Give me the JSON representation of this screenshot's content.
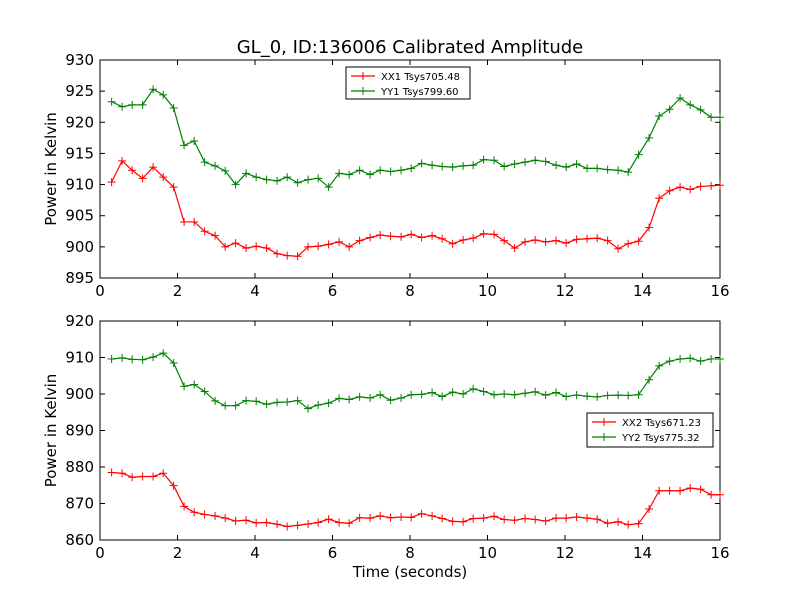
{
  "title": "GL_0, ID:136006 Calibrated Amplitude",
  "colors": {
    "red": "#ff0000",
    "green": "#008000"
  },
  "chart_data": [
    {
      "type": "line",
      "xlabel": "",
      "ylabel": "Power in Kelvin",
      "xlim": [
        0,
        16
      ],
      "ylim": [
        895,
        930
      ],
      "xticks": [
        0,
        2,
        4,
        6,
        8,
        10,
        12,
        14,
        16
      ],
      "yticks": [
        895,
        900,
        905,
        910,
        915,
        920,
        925,
        930
      ],
      "grid": false,
      "legend_position": "top-center",
      "x": [
        0.3,
        0.57,
        0.83,
        1.1,
        1.37,
        1.63,
        1.9,
        2.17,
        2.43,
        2.7,
        2.97,
        3.23,
        3.5,
        3.77,
        4.03,
        4.3,
        4.57,
        4.83,
        5.1,
        5.37,
        5.63,
        5.9,
        6.17,
        6.43,
        6.7,
        6.97,
        7.23,
        7.5,
        7.77,
        8.03,
        8.3,
        8.57,
        8.83,
        9.1,
        9.37,
        9.63,
        9.9,
        10.17,
        10.43,
        10.7,
        10.97,
        11.23,
        11.5,
        11.77,
        12.03,
        12.3,
        12.57,
        12.83,
        13.1,
        13.37,
        13.63,
        13.9,
        14.17,
        14.43,
        14.7,
        14.97,
        15.23,
        15.5,
        15.77,
        16.0
      ],
      "series": [
        {
          "name": "XX1 Tsys705.48",
          "color": "#ff0000",
          "values": [
            910.4,
            913.8,
            912.3,
            911.0,
            912.8,
            911.2,
            909.6,
            904.0,
            904.0,
            902.5,
            901.8,
            900.0,
            900.6,
            899.8,
            900.1,
            899.8,
            898.9,
            898.6,
            898.5,
            900.0,
            900.1,
            900.4,
            900.8,
            900.0,
            901.0,
            901.5,
            901.9,
            901.7,
            901.6,
            902.0,
            901.5,
            901.8,
            901.3,
            900.5,
            901.1,
            901.4,
            902.1,
            902.0,
            901.0,
            899.8,
            900.8,
            901.1,
            900.8,
            901.0,
            900.6,
            901.2,
            901.3,
            901.4,
            901.0,
            899.7,
            900.5,
            900.9,
            903.1,
            907.8,
            909.0,
            909.6,
            909.2,
            909.7,
            909.8,
            909.9
          ]
        },
        {
          "name": "YY1 Tsys799.60",
          "color": "#008000",
          "values": [
            923.3,
            922.5,
            922.8,
            922.8,
            925.3,
            924.4,
            922.3,
            916.3,
            917.0,
            913.6,
            913.0,
            912.2,
            910.0,
            911.8,
            911.2,
            910.8,
            910.6,
            911.2,
            910.3,
            910.8,
            911.0,
            909.6,
            911.8,
            911.6,
            912.3,
            911.6,
            912.3,
            912.1,
            912.3,
            912.6,
            913.4,
            913.1,
            912.9,
            912.8,
            913.0,
            913.1,
            914.0,
            913.9,
            912.9,
            913.3,
            913.6,
            913.9,
            913.7,
            913.1,
            912.8,
            913.3,
            912.6,
            912.6,
            912.4,
            912.3,
            912.0,
            914.8,
            917.5,
            921.0,
            922.1,
            923.9,
            922.8,
            922.0,
            920.8,
            920.8
          ]
        }
      ]
    },
    {
      "type": "line",
      "xlabel": "Time (seconds)",
      "ylabel": "Power in Kelvin",
      "xlim": [
        0,
        16
      ],
      "ylim": [
        860,
        920
      ],
      "xticks": [
        0,
        2,
        4,
        6,
        8,
        10,
        12,
        14,
        16
      ],
      "yticks": [
        860,
        870,
        880,
        890,
        900,
        910,
        920
      ],
      "grid": false,
      "legend_position": "center-right",
      "x": [
        0.3,
        0.57,
        0.83,
        1.1,
        1.37,
        1.63,
        1.9,
        2.17,
        2.43,
        2.7,
        2.97,
        3.23,
        3.5,
        3.77,
        4.03,
        4.3,
        4.57,
        4.83,
        5.1,
        5.37,
        5.63,
        5.9,
        6.17,
        6.43,
        6.7,
        6.97,
        7.23,
        7.5,
        7.77,
        8.03,
        8.3,
        8.57,
        8.83,
        9.1,
        9.37,
        9.63,
        9.9,
        10.17,
        10.43,
        10.7,
        10.97,
        11.23,
        11.5,
        11.77,
        12.03,
        12.3,
        12.57,
        12.83,
        13.1,
        13.37,
        13.63,
        13.9,
        14.17,
        14.43,
        14.7,
        14.97,
        15.23,
        15.5,
        15.77,
        16.0
      ],
      "series": [
        {
          "name": "XX2 Tsys671.23",
          "color": "#ff0000",
          "values": [
            878.5,
            878.3,
            877.2,
            877.4,
            877.4,
            878.3,
            874.9,
            869.2,
            867.6,
            867.0,
            866.6,
            866.0,
            865.2,
            865.4,
            864.7,
            864.8,
            864.3,
            863.7,
            864.0,
            864.4,
            864.8,
            865.7,
            864.8,
            864.6,
            866.1,
            866.0,
            866.6,
            866.1,
            866.3,
            866.2,
            867.2,
            866.6,
            865.9,
            865.1,
            865.0,
            865.9,
            866.0,
            866.5,
            865.6,
            865.4,
            865.9,
            865.6,
            865.2,
            866.0,
            866.0,
            866.3,
            866.0,
            865.7,
            864.6,
            865.0,
            864.2,
            864.5,
            868.5,
            873.5,
            873.5,
            873.5,
            874.2,
            873.9,
            872.4,
            872.4
          ]
        },
        {
          "name": "YY2 Tsys775.32",
          "color": "#008000",
          "values": [
            909.6,
            909.9,
            909.5,
            909.4,
            910.1,
            911.2,
            908.5,
            902.1,
            902.6,
            900.7,
            898.1,
            896.8,
            896.8,
            898.2,
            898.0,
            897.2,
            897.7,
            897.8,
            898.2,
            896.0,
            897.0,
            897.5,
            898.8,
            898.5,
            899.2,
            898.9,
            899.8,
            898.3,
            898.9,
            899.8,
            899.9,
            900.4,
            899.3,
            900.5,
            900.0,
            901.4,
            900.7,
            899.8,
            900.0,
            899.8,
            900.2,
            900.6,
            899.7,
            900.4,
            899.3,
            899.7,
            899.4,
            899.2,
            899.6,
            899.7,
            899.6,
            899.8,
            903.9,
            907.7,
            909.0,
            909.6,
            909.8,
            909.0,
            909.6,
            909.6
          ]
        }
      ]
    }
  ]
}
